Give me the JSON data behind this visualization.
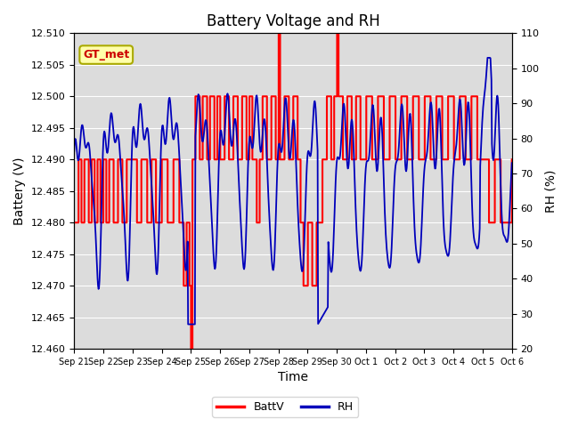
{
  "title": "Battery Voltage and RH",
  "xlabel": "Time",
  "ylabel_left": "Battery (V)",
  "ylabel_right": "RH (%)",
  "annotation": "GT_met",
  "ylim_left": [
    12.46,
    12.51
  ],
  "ylim_right": [
    20,
    110
  ],
  "yticks_left": [
    12.46,
    12.465,
    12.47,
    12.475,
    12.48,
    12.485,
    12.49,
    12.495,
    12.5,
    12.505,
    12.51
  ],
  "yticks_right": [
    20,
    30,
    40,
    50,
    60,
    70,
    80,
    90,
    100,
    110
  ],
  "xtick_labels": [
    "Sep 21",
    "Sep 22",
    "Sep 23",
    "Sep 24",
    "Sep 25",
    "Sep 26",
    "Sep 27",
    "Sep 28",
    "Sep 29",
    "Sep 30",
    "Oct 1",
    "Oct 2",
    "Oct 3",
    "Oct 4",
    "Oct 5",
    "Oct 6"
  ],
  "bg_color": "#dcdcdc",
  "batt_color": "#ff0000",
  "rh_color": "#0000bb",
  "legend_batt": "BattV",
  "legend_rh": "RH",
  "annotation_bg": "#ffffaa",
  "annotation_border": "#aaaa00",
  "annotation_text_color": "#cc0000",
  "grid_color": "#ffffff",
  "fig_bg": "#ffffff",
  "title_fontsize": 12,
  "axis_fontsize": 10,
  "tick_fontsize": 8,
  "legend_fontsize": 9
}
